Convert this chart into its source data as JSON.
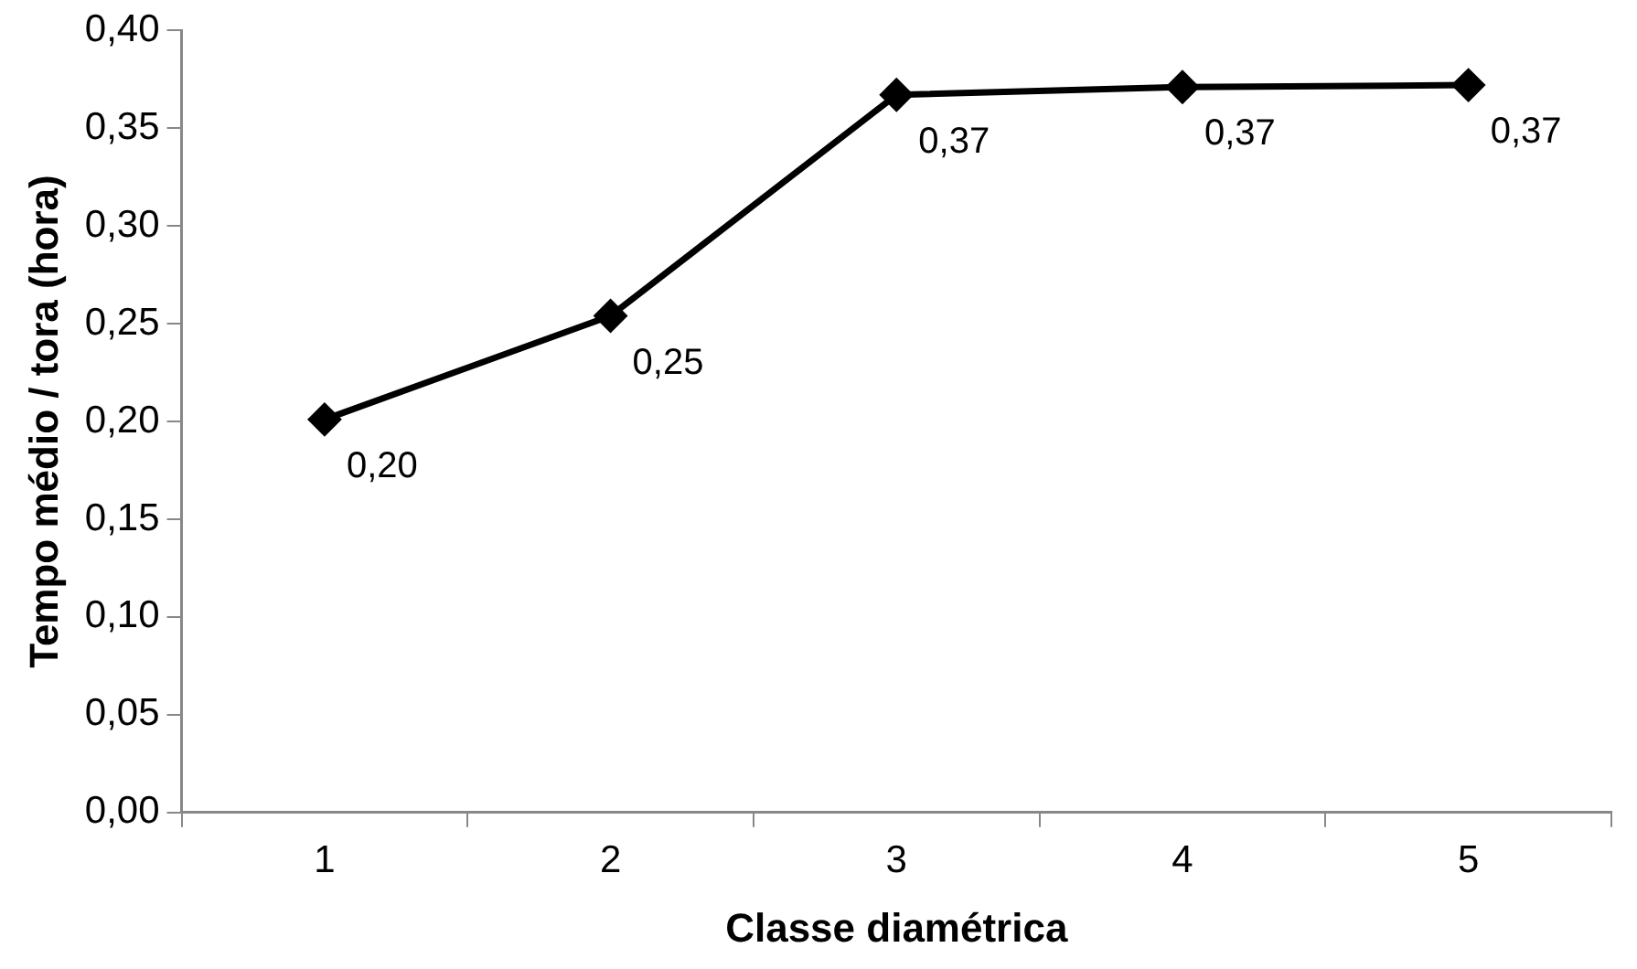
{
  "chart_data": {
    "type": "line",
    "xlabel": "Classe diamétrica",
    "ylabel": "Tempo médio / tora (hora)",
    "categories": [
      "1",
      "2",
      "3",
      "4",
      "5"
    ],
    "series": [
      {
        "color": "#000000",
        "values": [
          0.201,
          0.254,
          0.367,
          0.371,
          0.372
        ],
        "value_labels": [
          "0,20",
          "0,25",
          "0,37",
          "0,37",
          "0,37"
        ]
      }
    ],
    "ylim": [
      0,
      0.4
    ],
    "yticks": [
      {
        "value": 0,
        "label": "0,00"
      },
      {
        "value": 0.05,
        "label": "0,05"
      },
      {
        "value": 0.1,
        "label": "0,10"
      },
      {
        "value": 0.15,
        "label": "0,15"
      },
      {
        "value": 0.2,
        "label": "0,20"
      },
      {
        "value": 0.25,
        "label": "0,25"
      },
      {
        "value": 0.3,
        "label": "0,30"
      },
      {
        "value": 0.35,
        "label": "0,35"
      },
      {
        "value": 0.4,
        "label": "0,40"
      }
    ],
    "grid": false,
    "legend": false,
    "marker": "diamond",
    "line_style": "solid"
  }
}
